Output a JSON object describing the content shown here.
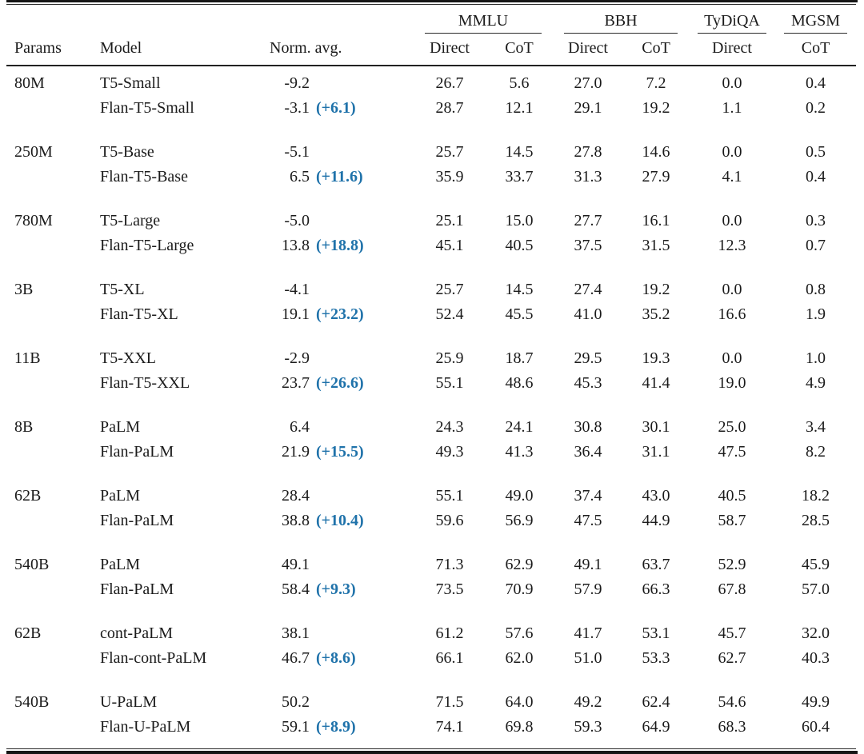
{
  "accent_blue": "#1f72aa",
  "table": {
    "group_headers": [
      {
        "label": "MMLU"
      },
      {
        "label": "BBH"
      },
      {
        "label": "TyDiQA"
      },
      {
        "label": "MGSM"
      }
    ],
    "columns": [
      "Params",
      "Model",
      "Norm. avg.",
      "Direct",
      "CoT",
      "Direct",
      "CoT",
      "Direct",
      "CoT"
    ],
    "groups": [
      {
        "params": "80M",
        "rows": [
          {
            "model": "T5-Small",
            "norm_avg": "-9.2",
            "delta": "",
            "values": [
              "26.7",
              "5.6",
              "27.0",
              "7.2",
              "0.0",
              "0.4"
            ]
          },
          {
            "model": "Flan-T5-Small",
            "norm_avg": "-3.1",
            "delta": "(+6.1)",
            "values": [
              "28.7",
              "12.1",
              "29.1",
              "19.2",
              "1.1",
              "0.2"
            ]
          }
        ]
      },
      {
        "params": "250M",
        "rows": [
          {
            "model": "T5-Base",
            "norm_avg": "-5.1",
            "delta": "",
            "values": [
              "25.7",
              "14.5",
              "27.8",
              "14.6",
              "0.0",
              "0.5"
            ]
          },
          {
            "model": "Flan-T5-Base",
            "norm_avg": "6.5",
            "delta": "(+11.6)",
            "values": [
              "35.9",
              "33.7",
              "31.3",
              "27.9",
              "4.1",
              "0.4"
            ]
          }
        ]
      },
      {
        "params": "780M",
        "rows": [
          {
            "model": "T5-Large",
            "norm_avg": "-5.0",
            "delta": "",
            "values": [
              "25.1",
              "15.0",
              "27.7",
              "16.1",
              "0.0",
              "0.3"
            ]
          },
          {
            "model": "Flan-T5-Large",
            "norm_avg": "13.8",
            "delta": "(+18.8)",
            "values": [
              "45.1",
              "40.5",
              "37.5",
              "31.5",
              "12.3",
              "0.7"
            ]
          }
        ]
      },
      {
        "params": "3B",
        "rows": [
          {
            "model": "T5-XL",
            "norm_avg": "-4.1",
            "delta": "",
            "values": [
              "25.7",
              "14.5",
              "27.4",
              "19.2",
              "0.0",
              "0.8"
            ]
          },
          {
            "model": "Flan-T5-XL",
            "norm_avg": "19.1",
            "delta": "(+23.2)",
            "values": [
              "52.4",
              "45.5",
              "41.0",
              "35.2",
              "16.6",
              "1.9"
            ]
          }
        ]
      },
      {
        "params": "11B",
        "rows": [
          {
            "model": "T5-XXL",
            "norm_avg": "-2.9",
            "delta": "",
            "values": [
              "25.9",
              "18.7",
              "29.5",
              "19.3",
              "0.0",
              "1.0"
            ]
          },
          {
            "model": "Flan-T5-XXL",
            "norm_avg": "23.7",
            "delta": "(+26.6)",
            "values": [
              "55.1",
              "48.6",
              "45.3",
              "41.4",
              "19.0",
              "4.9"
            ]
          }
        ]
      },
      {
        "params": "8B",
        "rows": [
          {
            "model": "PaLM",
            "norm_avg": "6.4",
            "delta": "",
            "values": [
              "24.3",
              "24.1",
              "30.8",
              "30.1",
              "25.0",
              "3.4"
            ]
          },
          {
            "model": "Flan-PaLM",
            "norm_avg": "21.9",
            "delta": "(+15.5)",
            "values": [
              "49.3",
              "41.3",
              "36.4",
              "31.1",
              "47.5",
              "8.2"
            ]
          }
        ]
      },
      {
        "params": "62B",
        "rows": [
          {
            "model": "PaLM",
            "norm_avg": "28.4",
            "delta": "",
            "values": [
              "55.1",
              "49.0",
              "37.4",
              "43.0",
              "40.5",
              "18.2"
            ]
          },
          {
            "model": "Flan-PaLM",
            "norm_avg": "38.8",
            "delta": "(+10.4)",
            "values": [
              "59.6",
              "56.9",
              "47.5",
              "44.9",
              "58.7",
              "28.5"
            ]
          }
        ]
      },
      {
        "params": "540B",
        "rows": [
          {
            "model": "PaLM",
            "norm_avg": "49.1",
            "delta": "",
            "values": [
              "71.3",
              "62.9",
              "49.1",
              "63.7",
              "52.9",
              "45.9"
            ]
          },
          {
            "model": "Flan-PaLM",
            "norm_avg": "58.4",
            "delta": "(+9.3)",
            "values": [
              "73.5",
              "70.9",
              "57.9",
              "66.3",
              "67.8",
              "57.0"
            ]
          }
        ]
      },
      {
        "params": "62B",
        "rows": [
          {
            "model": "cont-PaLM",
            "norm_avg": "38.1",
            "delta": "",
            "values": [
              "61.2",
              "57.6",
              "41.7",
              "53.1",
              "45.7",
              "32.0"
            ]
          },
          {
            "model": "Flan-cont-PaLM",
            "norm_avg": "46.7",
            "delta": "(+8.6)",
            "values": [
              "66.1",
              "62.0",
              "51.0",
              "53.3",
              "62.7",
              "40.3"
            ]
          }
        ]
      },
      {
        "params": "540B",
        "rows": [
          {
            "model": "U-PaLM",
            "norm_avg": "50.2",
            "delta": "",
            "values": [
              "71.5",
              "64.0",
              "49.2",
              "62.4",
              "54.6",
              "49.9"
            ]
          },
          {
            "model": "Flan-U-PaLM",
            "norm_avg": "59.1",
            "delta": "(+8.9)",
            "values": [
              "74.1",
              "69.8",
              "59.3",
              "64.9",
              "68.3",
              "60.4"
            ]
          }
        ]
      }
    ]
  }
}
